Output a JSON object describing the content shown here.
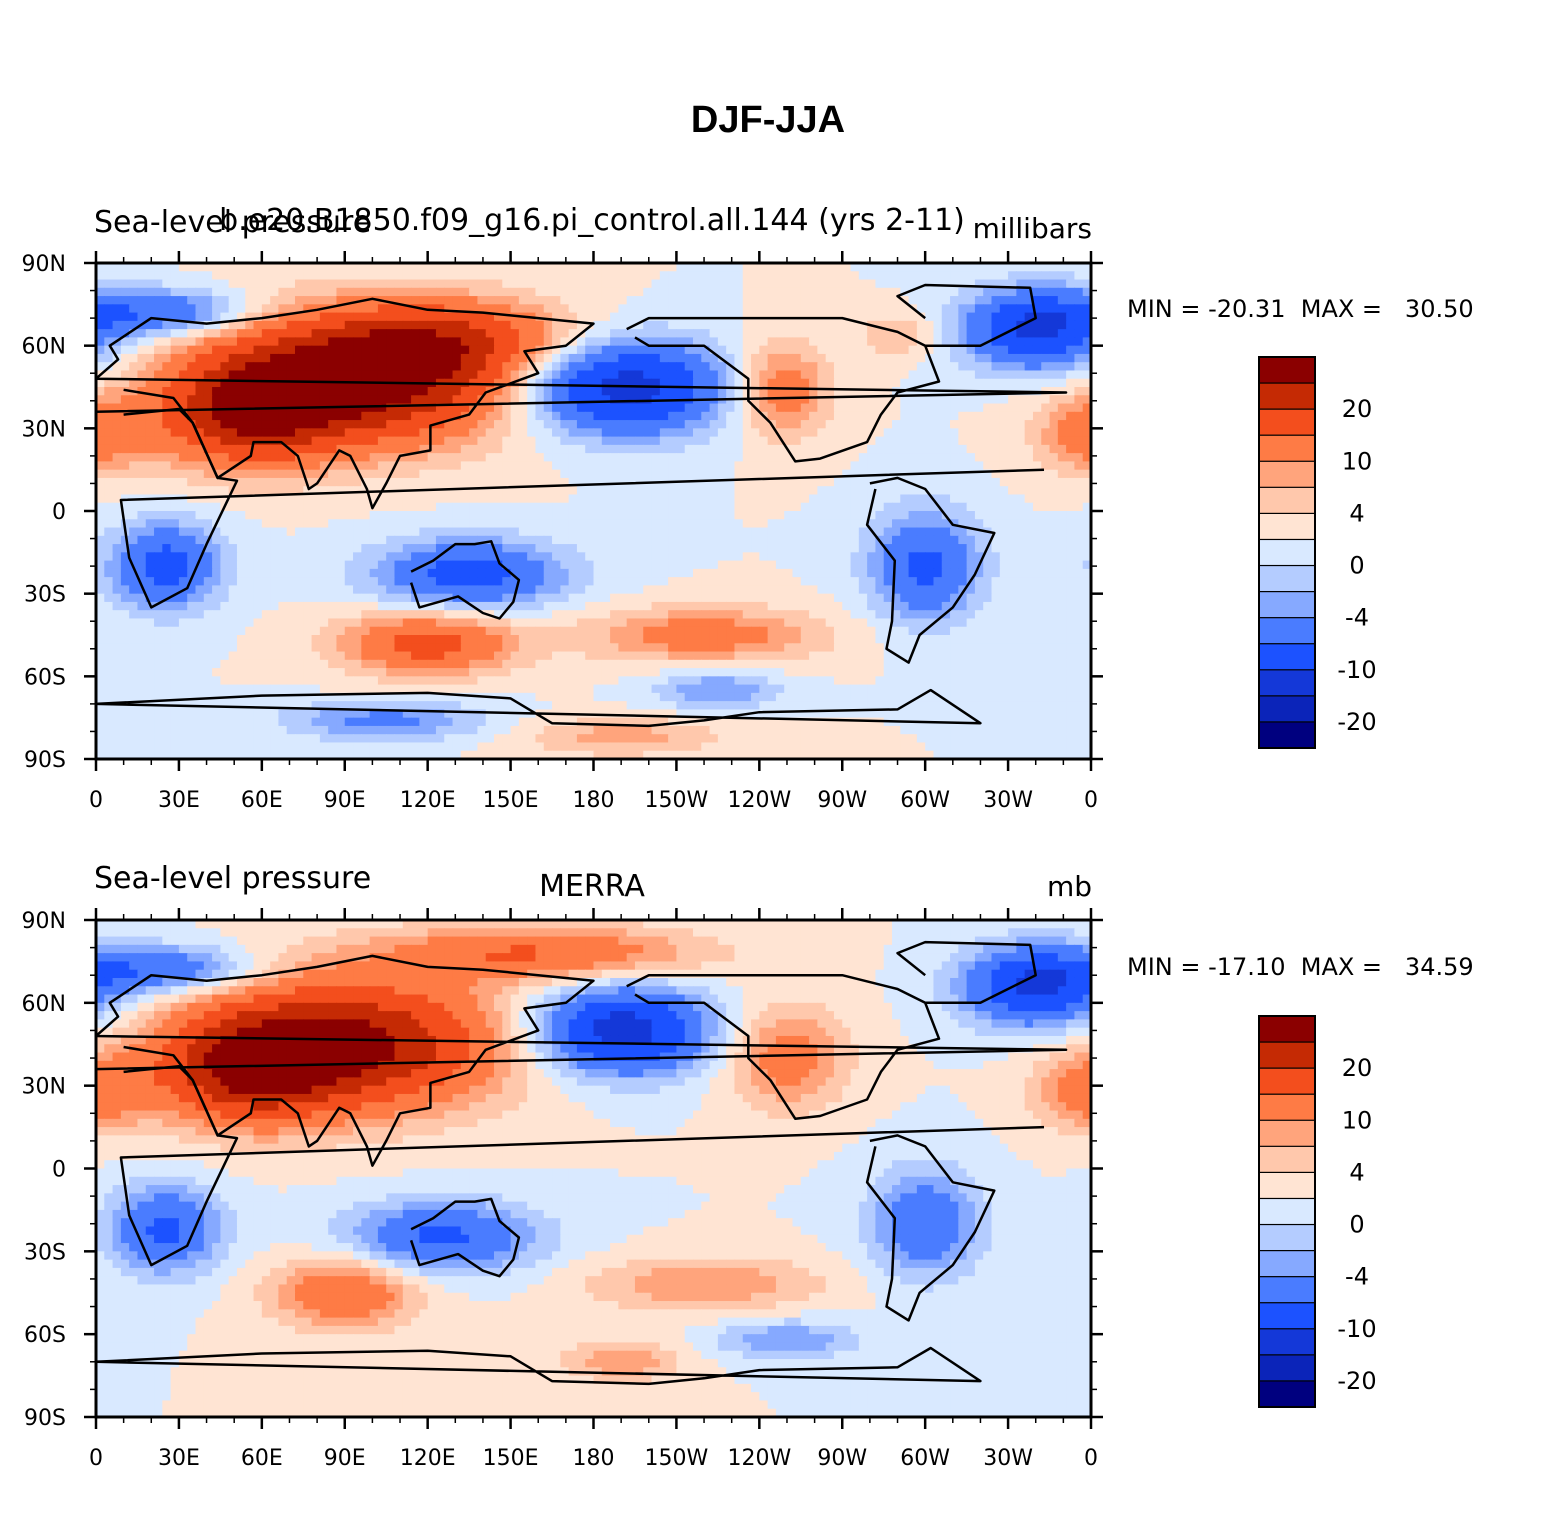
{
  "figure_title": "DJF-JJA",
  "chart_data": [
    {
      "type": "heatmap",
      "left_title": "Sea-level pressure",
      "center_title": "b.e20.B1850.f09_g16.pi_control.all.144 (yrs 2-11)",
      "units": "millibars",
      "stats": "MIN = -20.31  MAX =   30.50",
      "min": -20.31,
      "max": 30.5,
      "x_ticks": [
        "0",
        "30E",
        "60E",
        "90E",
        "120E",
        "150E",
        "180",
        "150W",
        "120W",
        "90W",
        "60W",
        "30W",
        "0"
      ],
      "y_ticks": [
        "90N",
        "60N",
        "30N",
        "0",
        "30S",
        "60S",
        "90S"
      ],
      "xlim": [
        0,
        360
      ],
      "ylim": [
        -90,
        90
      ],
      "features": [
        {
          "lon": 95,
          "lat": 48,
          "amp": 24,
          "wx": 38,
          "wy": 16
        },
        {
          "lon": 55,
          "lat": 35,
          "amp": 16,
          "wx": 22,
          "wy": 13
        },
        {
          "lon": 130,
          "lat": 62,
          "amp": 10,
          "wx": 30,
          "wy": 10
        },
        {
          "lon": 0,
          "lat": 28,
          "amp": 8,
          "wx": 14,
          "wy": 10
        },
        {
          "lon": 248,
          "lat": 44,
          "amp": 9,
          "wx": 12,
          "wy": 12
        },
        {
          "lon": 290,
          "lat": 64,
          "amp": 4,
          "wx": 10,
          "wy": 6
        },
        {
          "lon": 190,
          "lat": 45,
          "amp": -18,
          "wx": 26,
          "wy": 12
        },
        {
          "lon": 340,
          "lat": 66,
          "amp": -16,
          "wx": 18,
          "wy": 10
        },
        {
          "lon": 25,
          "lat": 72,
          "amp": -10,
          "wx": 22,
          "wy": 6
        },
        {
          "lon": 135,
          "lat": -23,
          "amp": -12,
          "wx": 24,
          "wy": 9
        },
        {
          "lon": 25,
          "lat": -20,
          "amp": -12,
          "wx": 14,
          "wy": 11
        },
        {
          "lon": 300,
          "lat": -20,
          "amp": -11,
          "wx": 14,
          "wy": 14
        },
        {
          "lon": 120,
          "lat": -48,
          "amp": 12,
          "wx": 22,
          "wy": 8
        },
        {
          "lon": 220,
          "lat": -45,
          "amp": 8,
          "wx": 30,
          "wy": 7
        },
        {
          "lon": 225,
          "lat": -65,
          "amp": -6,
          "wx": 16,
          "wy": 5
        },
        {
          "lon": 105,
          "lat": -76,
          "amp": -7,
          "wx": 25,
          "wy": 5
        },
        {
          "lon": 190,
          "lat": -82,
          "amp": 5,
          "wx": 25,
          "wy": 5
        }
      ]
    },
    {
      "type": "heatmap",
      "left_title": "Sea-level pressure",
      "center_title": "MERRA",
      "units": "mb",
      "stats": "MIN = -17.10  MAX =   34.59",
      "min": -17.1,
      "max": 34.59,
      "x_ticks": [
        "0",
        "30E",
        "60E",
        "90E",
        "120E",
        "150E",
        "180",
        "150W",
        "120W",
        "90W",
        "60W",
        "30W",
        "0"
      ],
      "y_ticks": [
        "90N",
        "60N",
        "30N",
        "0",
        "30S",
        "60S",
        "90S"
      ],
      "xlim": [
        0,
        360
      ],
      "ylim": [
        -90,
        90
      ],
      "features": [
        {
          "lon": 90,
          "lat": 45,
          "amp": 22,
          "wx": 38,
          "wy": 16
        },
        {
          "lon": 55,
          "lat": 35,
          "amp": 15,
          "wx": 22,
          "wy": 13
        },
        {
          "lon": 160,
          "lat": 78,
          "amp": 10,
          "wx": 40,
          "wy": 7
        },
        {
          "lon": 0,
          "lat": 28,
          "amp": 8,
          "wx": 14,
          "wy": 10
        },
        {
          "lon": 250,
          "lat": 40,
          "amp": 8,
          "wx": 15,
          "wy": 13
        },
        {
          "lon": 190,
          "lat": 50,
          "amp": -18,
          "wx": 22,
          "wy": 11
        },
        {
          "lon": 340,
          "lat": 66,
          "amp": -16,
          "wx": 18,
          "wy": 10
        },
        {
          "lon": 25,
          "lat": 72,
          "amp": -10,
          "wx": 22,
          "wy": 6
        },
        {
          "lon": 125,
          "lat": -25,
          "amp": -11,
          "wx": 24,
          "wy": 9
        },
        {
          "lon": 25,
          "lat": -22,
          "amp": -11,
          "wx": 14,
          "wy": 11
        },
        {
          "lon": 300,
          "lat": -20,
          "amp": -9,
          "wx": 14,
          "wy": 14
        },
        {
          "lon": 90,
          "lat": -45,
          "amp": 10,
          "wx": 18,
          "wy": 9
        },
        {
          "lon": 220,
          "lat": -42,
          "amp": 6,
          "wx": 30,
          "wy": 7
        },
        {
          "lon": 250,
          "lat": -62,
          "amp": -6,
          "wx": 18,
          "wy": 5
        },
        {
          "lon": 190,
          "lat": -70,
          "amp": 6,
          "wx": 15,
          "wy": 5
        }
      ]
    }
  ],
  "colorbar": {
    "labels": [
      "20",
      "10",
      "4",
      "0",
      "-4",
      "-10",
      "-20"
    ],
    "levels": [
      -25,
      -20,
      -15,
      -10,
      -6,
      -4,
      -2,
      0,
      2,
      4,
      6,
      10,
      15,
      20,
      25
    ],
    "colors": [
      "#00007f",
      "#0b24b9",
      "#1438d8",
      "#1c52ff",
      "#4a7cff",
      "#86a9ff",
      "#b4ccff",
      "#d9e9ff",
      "#ffe4d3",
      "#ffc8ac",
      "#ffa47c",
      "#fe7b45",
      "#f34e1d",
      "#c52a04",
      "#8b0000"
    ]
  }
}
